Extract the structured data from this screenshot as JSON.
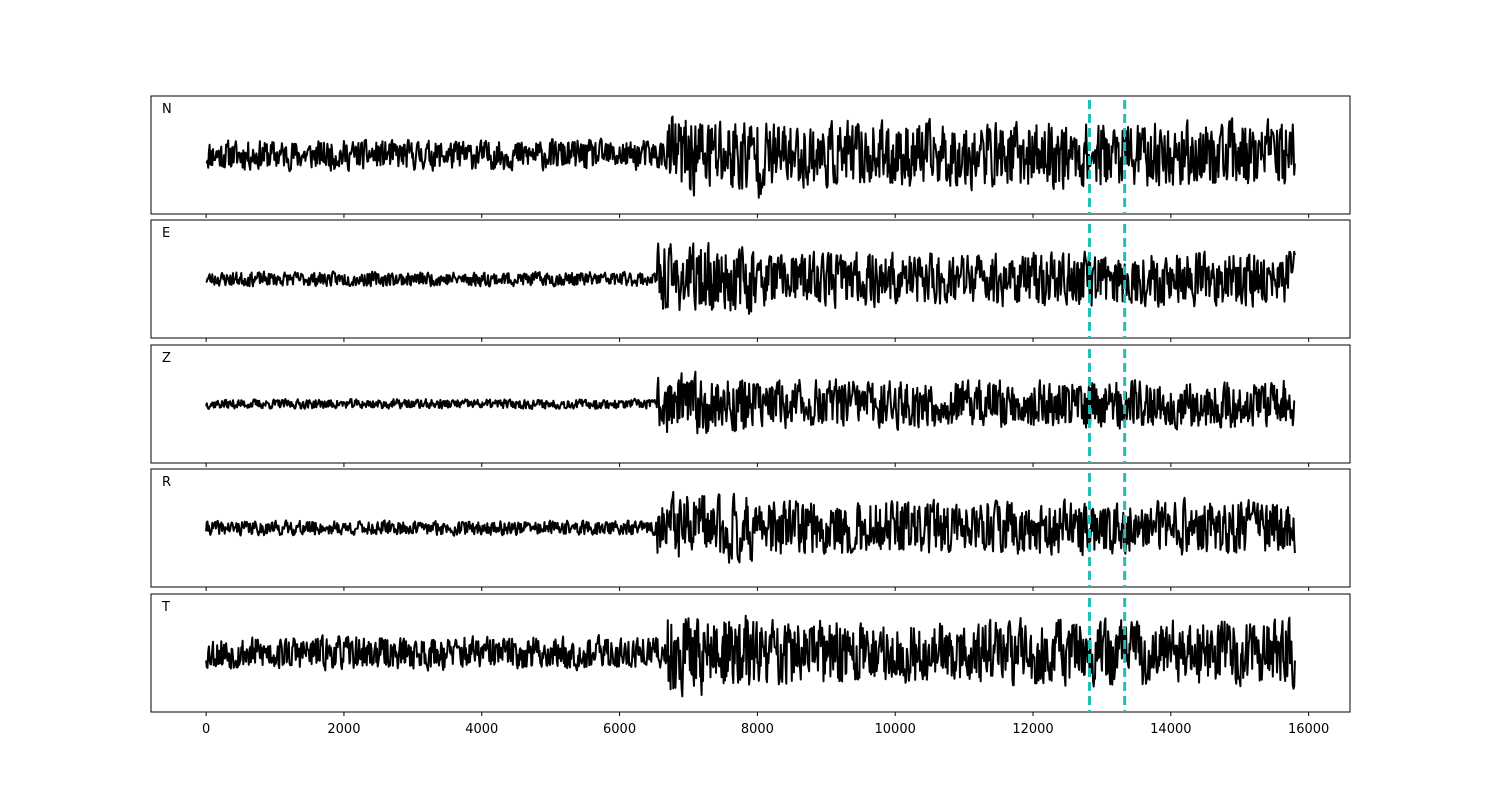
{
  "chart_data": {
    "type": "line",
    "xlim": [
      -800,
      16600
    ],
    "xticks": [
      0,
      2000,
      4000,
      6000,
      8000,
      10000,
      12000,
      14000,
      16000
    ],
    "xtick_labels": [
      "0",
      "2000",
      "4000",
      "6000",
      "8000",
      "10000",
      "12000",
      "14000",
      "16000"
    ],
    "markers": [
      12820,
      13330
    ],
    "marker_color": "#1fbfb8",
    "line_color": "#000000",
    "signal_end": 15800,
    "panels": [
      {
        "label": "N",
        "noise_amp": 0.25,
        "signal_amp": 0.55,
        "onset": 6700,
        "seed": 11
      },
      {
        "label": "E",
        "noise_amp": 0.12,
        "signal_amp": 0.45,
        "onset": 6550,
        "seed": 23
      },
      {
        "label": "Z",
        "noise_amp": 0.08,
        "signal_amp": 0.4,
        "onset": 6550,
        "seed": 37
      },
      {
        "label": "R",
        "noise_amp": 0.12,
        "signal_amp": 0.45,
        "onset": 6550,
        "seed": 41
      },
      {
        "label": "T",
        "noise_amp": 0.28,
        "signal_amp": 0.55,
        "onset": 6700,
        "seed": 53
      }
    ]
  }
}
